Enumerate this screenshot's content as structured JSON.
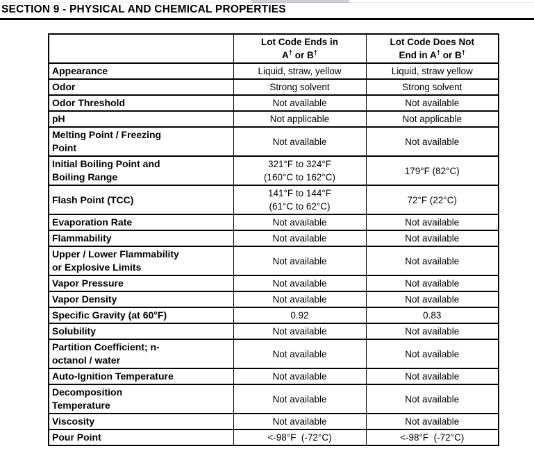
{
  "chrome": {
    "scrollbar_fragment_color": "#d0d0d5",
    "top_divider_color": "#ececec"
  },
  "section": {
    "title": "SECTION 9 - PHYSICAL AND CHEMICAL PROPERTIES"
  },
  "table": {
    "header": {
      "property": "",
      "col1": "Lot Code Ends in\nA† or B†",
      "col2": "Lot Code Does Not\nEnd in A† or B†"
    },
    "rows": [
      {
        "property": "Appearance",
        "col1": "Liquid, straw, yellow",
        "col2": "Liquid, straw yellow"
      },
      {
        "property": "Odor",
        "col1": "Strong solvent",
        "col2": "Strong solvent"
      },
      {
        "property": "Odor Threshold",
        "col1": "Not available",
        "col2": "Not available"
      },
      {
        "property": "pH",
        "col1": "Not applicable",
        "col2": "Not applicable"
      },
      {
        "property": "Melting Point / Freezing\nPoint",
        "col1": "Not available",
        "col2": "Not available"
      },
      {
        "property": "Initial Boiling Point and\nBoiling Range",
        "col1": "321°F to 324°F\n(160°C to 162°C)",
        "col2": "179°F (82°C)"
      },
      {
        "property": "Flash Point (TCC)",
        "col1": "141°F to 144°F\n(61°C to 62°C)",
        "col2": "72°F (22°C)"
      },
      {
        "property": "Evaporation Rate",
        "col1": "Not available",
        "col2": "Not available"
      },
      {
        "property": "Flammability",
        "col1": "Not available",
        "col2": "Not available"
      },
      {
        "property": "Upper / Lower Flammability\nor Explosive Limits",
        "col1": "Not available",
        "col2": "Not available"
      },
      {
        "property": "Vapor Pressure",
        "col1": "Not available",
        "col2": "Not available"
      },
      {
        "property": "Vapor Density",
        "col1": "Not available",
        "col2": "Not available"
      },
      {
        "property": "Specific Gravity (at 60°F)",
        "col1": "0.92",
        "col2": "0.83"
      },
      {
        "property": "Solubility",
        "col1": "Not available",
        "col2": "Not available"
      },
      {
        "property": "Partition Coefficient; n-\noctanol / water",
        "col1": "Not available",
        "col2": "Not available"
      },
      {
        "property": "Auto-Ignition Temperature",
        "col1": "Not available",
        "col2": "Not available"
      },
      {
        "property": "Decomposition\nTemperature",
        "col1": "Not available",
        "col2": "Not available"
      },
      {
        "property": "Viscosity",
        "col1": "Not available",
        "col2": "Not available"
      },
      {
        "property": "Pour Point",
        "col1": "<-98°F  (-72°C)",
        "col2": "<-98°F  (-72°C)"
      }
    ]
  }
}
